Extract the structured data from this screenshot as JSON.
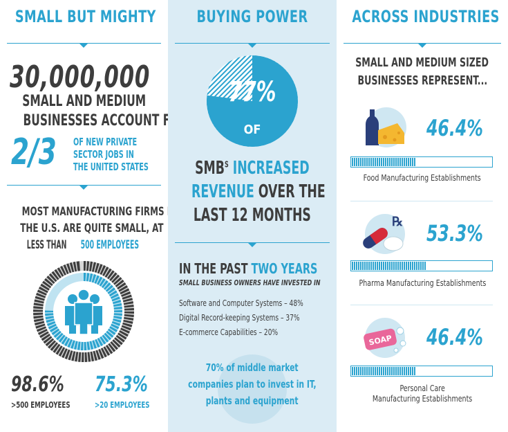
{
  "columns": {
    "small_but_mighty": {
      "title": "SMALL BUT MIGHTY",
      "big_number": "30,000,000",
      "line1": "SMALL AND MEDIUM",
      "line2": "BUSINESSES ACCOUNT FOR",
      "fraction": "2/3",
      "fraction_text": [
        "OF NEW PRIVATE",
        "SECTOR JOBS IN",
        "THE UNITED STATES"
      ],
      "manufacturing_line1": "MOST MANUFACTURING FIRMS IN",
      "manufacturing_line2": "THE U.S. ARE QUITE SMALL, AT",
      "manufacturing_line3_prefix": "LESS THAN ",
      "manufacturing_line3_highlight": "500 EMPLOYEES",
      "stat1_value": "98.6%",
      "stat1_label": ">500 EMPLOYEES",
      "stat2_value": "75.3%",
      "stat2_label": ">20 EMPLOYEES",
      "donut_outer_fraction": 0.986,
      "donut_inner_fraction": 0.753,
      "icon": "people-group-icon"
    },
    "buying_power": {
      "title": "BUYING POWER",
      "percent": "77%",
      "percent_fraction": 0.77,
      "of": "OF",
      "smb_word": "SMB",
      "smb_super": "S",
      "increased": " INCREASED",
      "revenue": "REVENUE",
      "over_the": " OVER THE",
      "last_months": "LAST 12 MONTHS",
      "past_prefix": "IN THE PAST ",
      "past_highlight": "TWO YEARS",
      "past_sub": "SMALL BUSINESS OWNERS HAVE INVESTED IN",
      "investments": [
        "Software and Computer Systems – 48%",
        "Digital Record-keeping Systems – 37%",
        "E-commerce Capabilities – 20%"
      ],
      "middle_market": [
        "70% of middle market",
        "companies plan to invest in IT,",
        "plants and equipment"
      ]
    },
    "across_industries": {
      "title": "ACROSS INDUSTRIES",
      "subtitle": [
        "SMALL AND MEDIUM SIZED",
        "BUSINESSES REPRESENT..."
      ],
      "industries": [
        {
          "value": "46.4%",
          "fraction": 0.464,
          "label": [
            "Food Manufacturing Establishments"
          ],
          "icon": "wine-cheese-icon"
        },
        {
          "value": "53.3%",
          "fraction": 0.533,
          "label": [
            "Pharma Manufacturing Establishments"
          ],
          "icon": "rx-pills-icon"
        },
        {
          "value": "46.4%",
          "fraction": 0.464,
          "label": [
            "Personal Care",
            "Manufacturing Establishments"
          ],
          "icon": "soap-icon",
          "icon_text": "SOAP"
        }
      ]
    }
  },
  "colors": {
    "accent": "#2ba3cf",
    "dark": "#3d3d3d",
    "middle_bg": "#dbecf5"
  }
}
